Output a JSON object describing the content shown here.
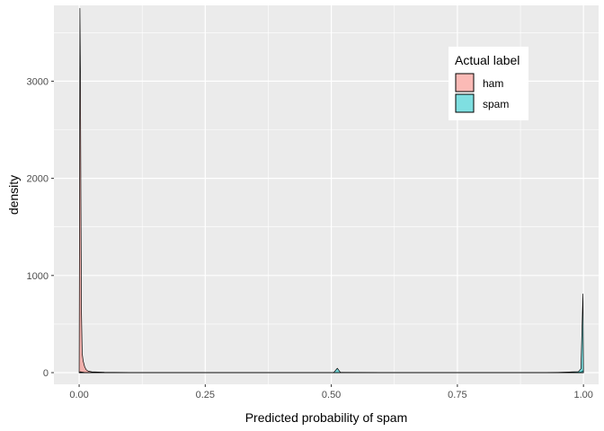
{
  "chart_data": {
    "type": "area",
    "title": "",
    "xlabel": "Predicted probability of spam",
    "ylabel": "density",
    "xlim": [
      -0.05,
      1.03
    ],
    "ylim": [
      -120,
      3780
    ],
    "x_ticks": [
      0.0,
      0.25,
      0.5,
      0.75,
      1.0
    ],
    "x_tick_labels": [
      "0.00",
      "0.25",
      "0.50",
      "0.75",
      "1.00"
    ],
    "y_ticks": [
      0,
      1000,
      2000,
      3000
    ],
    "y_tick_labels": [
      "0",
      "1000",
      "2000",
      "3000"
    ],
    "grid": true,
    "legend": {
      "title": "Actual label",
      "placement": "top-right",
      "entries": [
        "ham",
        "spam"
      ]
    },
    "series": [
      {
        "name": "ham",
        "color": "#F8766D",
        "points": [
          [
            0.0,
            0
          ],
          [
            0.0005,
            1200
          ],
          [
            0.0015,
            3750
          ],
          [
            0.0025,
            3100
          ],
          [
            0.0035,
            1790
          ],
          [
            0.0045,
            650
          ],
          [
            0.006,
            200
          ],
          [
            0.008,
            120
          ],
          [
            0.011,
            60
          ],
          [
            0.014,
            30
          ],
          [
            0.018,
            15
          ],
          [
            0.025,
            8
          ],
          [
            0.05,
            4
          ],
          [
            0.1,
            2
          ],
          [
            0.2,
            1
          ],
          [
            0.3,
            0.5
          ],
          [
            0.5,
            0.5
          ],
          [
            0.7,
            0.5
          ],
          [
            0.9,
            0.5
          ],
          [
            0.995,
            5
          ],
          [
            0.999,
            20
          ],
          [
            1.0,
            0
          ]
        ]
      },
      {
        "name": "spam",
        "color": "#00BFC4",
        "points": [
          [
            0.0,
            0
          ],
          [
            0.002,
            8
          ],
          [
            0.01,
            3
          ],
          [
            0.05,
            2
          ],
          [
            0.2,
            1
          ],
          [
            0.4,
            1
          ],
          [
            0.505,
            3
          ],
          [
            0.512,
            45
          ],
          [
            0.518,
            3
          ],
          [
            0.6,
            1
          ],
          [
            0.8,
            1
          ],
          [
            0.95,
            2
          ],
          [
            0.99,
            10
          ],
          [
            0.995,
            40
          ],
          [
            0.998,
            620
          ],
          [
            0.999,
            810
          ],
          [
            1.0,
            0
          ]
        ]
      }
    ]
  }
}
